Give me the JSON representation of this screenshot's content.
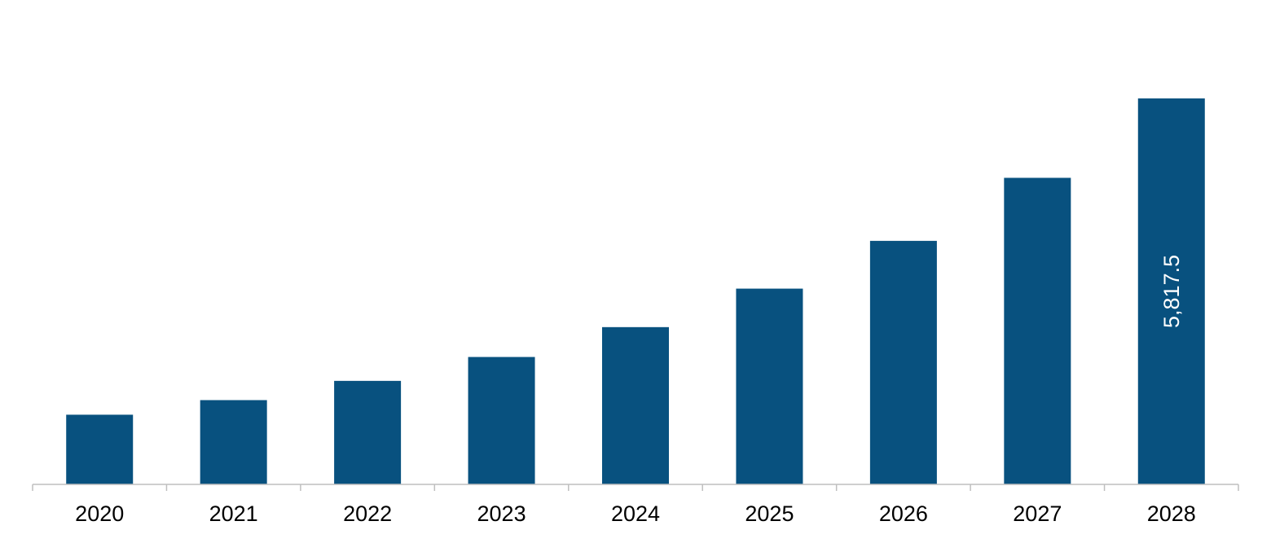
{
  "chart_data": {
    "type": "bar",
    "title": "",
    "xlabel": "",
    "ylabel": "",
    "categories": [
      "2020",
      "2021",
      "2022",
      "2023",
      "2024",
      "2025",
      "2026",
      "2027",
      "2028"
    ],
    "values": [
      1050,
      1270,
      1560,
      1920,
      2370,
      2950,
      3670,
      4620,
      5817.5
    ],
    "data_labels": [
      "",
      "",
      "",
      "",
      "",
      "",
      "",
      "",
      "5,817.5"
    ],
    "ylim": [
      0,
      7300
    ],
    "grid": false,
    "colors": {
      "bar": "#08517f",
      "axis": "#bfbfbf"
    }
  }
}
